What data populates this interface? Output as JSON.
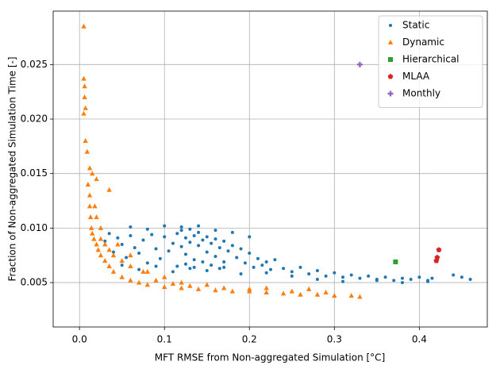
{
  "chart_data": {
    "type": "scatter",
    "x_label": "MFT RMSE from Non-aggregated Simulation [°C]",
    "y_label": "Fraction of Non-aggregated Simulation Time [-]",
    "xlim": [
      -0.031,
      0.48
    ],
    "ylim": [
      0.00093,
      0.0299
    ],
    "xticks": [
      {
        "value": 0,
        "label": "0.0"
      },
      0.1,
      0.2,
      0.3,
      0.4
    ],
    "yticks": [
      0.005,
      {
        "value": 0.01,
        "label": "0.010"
      },
      0.015,
      {
        "value": 0.02,
        "label": "0.020"
      },
      0.025
    ],
    "grid": true,
    "legend": "upper right",
    "series": [
      {
        "name": "Static",
        "color": "#1f77b4",
        "marker": "circle",
        "x": [
          0.03,
          0.035,
          0.04,
          0.045,
          0.05,
          0.055,
          0.06,
          0.065,
          0.07,
          0.075,
          0.08,
          0.085,
          0.09,
          0.095,
          0.1,
          0.105,
          0.11,
          0.115,
          0.12,
          0.12,
          0.125,
          0.125,
          0.13,
          0.13,
          0.135,
          0.135,
          0.14,
          0.14,
          0.145,
          0.15,
          0.15,
          0.155,
          0.16,
          0.16,
          0.165,
          0.17,
          0.17,
          0.175,
          0.18,
          0.185,
          0.19,
          0.195,
          0.2,
          0.205,
          0.21,
          0.215,
          0.22,
          0.225,
          0.23,
          0.24,
          0.25,
          0.26,
          0.27,
          0.28,
          0.29,
          0.3,
          0.31,
          0.32,
          0.33,
          0.34,
          0.35,
          0.36,
          0.37,
          0.38,
          0.39,
          0.4,
          0.41,
          0.415,
          0.44,
          0.45,
          0.46,
          0.05,
          0.07,
          0.09,
          0.11,
          0.13,
          0.15,
          0.17,
          0.19,
          0.22,
          0.25,
          0.28,
          0.31,
          0.35,
          0.38,
          0.41,
          0.06,
          0.08,
          0.1,
          0.12,
          0.14,
          0.16,
          0.18,
          0.2,
          0.115,
          0.125,
          0.135,
          0.145,
          0.155,
          0.165
        ],
        "values": [
          0.0088,
          0.0095,
          0.0078,
          0.0091,
          0.0085,
          0.0073,
          0.0093,
          0.0082,
          0.0077,
          0.0089,
          0.0068,
          0.0094,
          0.0081,
          0.0072,
          0.0092,
          0.0079,
          0.0086,
          0.0095,
          0.0098,
          0.0083,
          0.0091,
          0.0076,
          0.0099,
          0.0087,
          0.0093,
          0.0071,
          0.0096,
          0.0084,
          0.0089,
          0.0092,
          0.0078,
          0.0086,
          0.009,
          0.0074,
          0.0082,
          0.0088,
          0.0069,
          0.0079,
          0.0084,
          0.0073,
          0.0081,
          0.0068,
          0.0077,
          0.0064,
          0.0072,
          0.0066,
          0.0069,
          0.0062,
          0.0071,
          0.0063,
          0.006,
          0.0064,
          0.0058,
          0.0061,
          0.0056,
          0.0059,
          0.0055,
          0.0057,
          0.0054,
          0.0056,
          0.0053,
          0.0055,
          0.0052,
          0.0054,
          0.0053,
          0.0055,
          0.0052,
          0.0054,
          0.0057,
          0.0055,
          0.0053,
          0.0066,
          0.0062,
          0.0065,
          0.006,
          0.0063,
          0.0061,
          0.0064,
          0.0058,
          0.0059,
          0.0056,
          0.0053,
          0.0051,
          0.0052,
          0.005,
          0.0051,
          0.0101,
          0.0099,
          0.0102,
          0.0101,
          0.0102,
          0.0098,
          0.0096,
          0.0092,
          0.0065,
          0.0067,
          0.0064,
          0.0069,
          0.0066,
          0.0063
        ]
      },
      {
        "name": "Dynamic",
        "color": "#ff7f0e",
        "marker": "triangle",
        "x": [
          0.005,
          0.005,
          0.006,
          0.006,
          0.007,
          0.005,
          0.007,
          0.009,
          0.012,
          0.015,
          0.02,
          0.035,
          0.01,
          0.012,
          0.012,
          0.013,
          0.014,
          0.015,
          0.017,
          0.02,
          0.022,
          0.025,
          0.03,
          0.035,
          0.04,
          0.05,
          0.06,
          0.07,
          0.08,
          0.1,
          0.12,
          0.14,
          0.16,
          0.18,
          0.2,
          0.22,
          0.24,
          0.26,
          0.28,
          0.3,
          0.32,
          0.33,
          0.02,
          0.025,
          0.03,
          0.04,
          0.05,
          0.06,
          0.08,
          0.1,
          0.12,
          0.15,
          0.045,
          0.06,
          0.075,
          0.09,
          0.11,
          0.13,
          0.17,
          0.2,
          0.25,
          0.29,
          0.22,
          0.27,
          0.018,
          0.025,
          0.035
        ],
        "values": [
          0.0285,
          0.0237,
          0.023,
          0.022,
          0.021,
          0.0205,
          0.018,
          0.017,
          0.0155,
          0.015,
          0.0145,
          0.0135,
          0.014,
          0.013,
          0.012,
          0.011,
          0.01,
          0.0095,
          0.009,
          0.0085,
          0.008,
          0.0075,
          0.007,
          0.0065,
          0.006,
          0.0055,
          0.0052,
          0.005,
          0.0048,
          0.0046,
          0.0045,
          0.0044,
          0.0043,
          0.0042,
          0.0042,
          0.0041,
          0.004,
          0.0039,
          0.0039,
          0.0038,
          0.0038,
          0.0037,
          0.011,
          0.009,
          0.0085,
          0.0075,
          0.007,
          0.0065,
          0.006,
          0.0055,
          0.005,
          0.0048,
          0.0085,
          0.0075,
          0.006,
          0.0052,
          0.0049,
          0.0047,
          0.0045,
          0.0044,
          0.0042,
          0.0041,
          0.0045,
          0.0044,
          0.012,
          0.01,
          0.008
        ]
      },
      {
        "name": "Hierarchical",
        "color": "#2ca02c",
        "marker": "square",
        "x": [
          0.372
        ],
        "values": [
          0.0069
        ]
      },
      {
        "name": "MLAA",
        "color": "#d62728",
        "marker": "pentagon",
        "x": [
          0.42,
          0.421,
          0.423
        ],
        "values": [
          0.007,
          0.0073,
          0.008
        ]
      },
      {
        "name": "Monthly",
        "color": "#9467bd",
        "marker": "plus",
        "x": [
          0.33
        ],
        "values": [
          0.025
        ]
      }
    ]
  }
}
